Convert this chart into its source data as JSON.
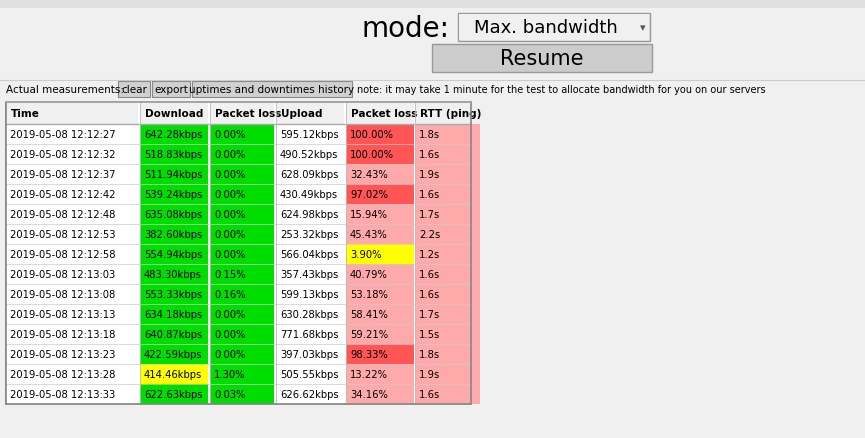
{
  "mode_label": "mode:",
  "mode_value": "Max. bandwidth",
  "resume_label": "Resume",
  "actual_label": "Actual measurements:",
  "buttons": [
    "clear",
    "export",
    "uptimes and downtimes history"
  ],
  "note": "note: it may take 1 minute for the test to allocate bandwidth for you on our servers",
  "headers": [
    "Time",
    "Download",
    "Packet loss",
    "Upload",
    "Packet loss",
    "RTT (ping)"
  ],
  "rows": [
    [
      "2019-05-08 12:12:27",
      "642.28kbps",
      "0.00%",
      "595.12kbps",
      "100.00%",
      "1.8s"
    ],
    [
      "2019-05-08 12:12:32",
      "518.83kbps",
      "0.00%",
      "490.52kbps",
      "100.00%",
      "1.6s"
    ],
    [
      "2019-05-08 12:12:37",
      "511.94kbps",
      "0.00%",
      "628.09kbps",
      "32.43%",
      "1.9s"
    ],
    [
      "2019-05-08 12:12:42",
      "539.24kbps",
      "0.00%",
      "430.49kbps",
      "97.02%",
      "1.6s"
    ],
    [
      "2019-05-08 12:12:48",
      "635.08kbps",
      "0.00%",
      "624.98kbps",
      "15.94%",
      "1.7s"
    ],
    [
      "2019-05-08 12:12:53",
      "382.60kbps",
      "0.00%",
      "253.32kbps",
      "45.43%",
      "2.2s"
    ],
    [
      "2019-05-08 12:12:58",
      "554.94kbps",
      "0.00%",
      "566.04kbps",
      "3.90%",
      "1.2s"
    ],
    [
      "2019-05-08 12:13:03",
      "483.30kbps",
      "0.15%",
      "357.43kbps",
      "40.79%",
      "1.6s"
    ],
    [
      "2019-05-08 12:13:08",
      "553.33kbps",
      "0.16%",
      "599.13kbps",
      "53.18%",
      "1.6s"
    ],
    [
      "2019-05-08 12:13:13",
      "634.18kbps",
      "0.00%",
      "630.28kbps",
      "58.41%",
      "1.7s"
    ],
    [
      "2019-05-08 12:13:18",
      "640.87kbps",
      "0.00%",
      "771.68kbps",
      "59.21%",
      "1.5s"
    ],
    [
      "2019-05-08 12:13:23",
      "422.59kbps",
      "0.00%",
      "397.03kbps",
      "98.33%",
      "1.8s"
    ],
    [
      "2019-05-08 12:13:28",
      "414.46kbps",
      "1.30%",
      "505.55kbps",
      "13.22%",
      "1.9s"
    ],
    [
      "2019-05-08 12:13:33",
      "622.63kbps",
      "0.03%",
      "626.62kbps",
      "34.16%",
      "1.6s"
    ]
  ],
  "cell_colors": [
    [
      "white",
      "green",
      "green",
      "white",
      "red",
      "salmon"
    ],
    [
      "white",
      "green",
      "green",
      "white",
      "red",
      "salmon"
    ],
    [
      "white",
      "green",
      "green",
      "white",
      "salmon",
      "salmon"
    ],
    [
      "white",
      "green",
      "green",
      "white",
      "red",
      "salmon"
    ],
    [
      "white",
      "green",
      "green",
      "white",
      "salmon",
      "salmon"
    ],
    [
      "white",
      "green",
      "green",
      "white",
      "salmon",
      "salmon"
    ],
    [
      "white",
      "green",
      "green",
      "white",
      "yellow",
      "salmon"
    ],
    [
      "white",
      "green",
      "green",
      "white",
      "salmon",
      "salmon"
    ],
    [
      "white",
      "green",
      "green",
      "white",
      "salmon",
      "salmon"
    ],
    [
      "white",
      "green",
      "green",
      "white",
      "salmon",
      "salmon"
    ],
    [
      "white",
      "green",
      "green",
      "white",
      "salmon",
      "salmon"
    ],
    [
      "white",
      "green",
      "green",
      "white",
      "red",
      "salmon"
    ],
    [
      "white",
      "yellow",
      "green",
      "white",
      "salmon",
      "salmon"
    ],
    [
      "white",
      "green",
      "green",
      "white",
      "salmon",
      "salmon"
    ]
  ],
  "col_colors_hex": {
    "green": "#00dd00",
    "red": "#ff5555",
    "salmon": "#ffaaaa",
    "yellow": "#ffff00",
    "white": "#ffffff"
  },
  "bg_color": "#f0f0f0",
  "table_border": "#aaaaaa",
  "font_size_table": 7.2,
  "font_size_mode_label": 20,
  "font_size_mode_value": 13,
  "font_size_resume": 15,
  "font_size_buttons": 7.5,
  "font_size_note": 7.0,
  "font_size_actual": 7.5,
  "font_size_header": 7.5
}
